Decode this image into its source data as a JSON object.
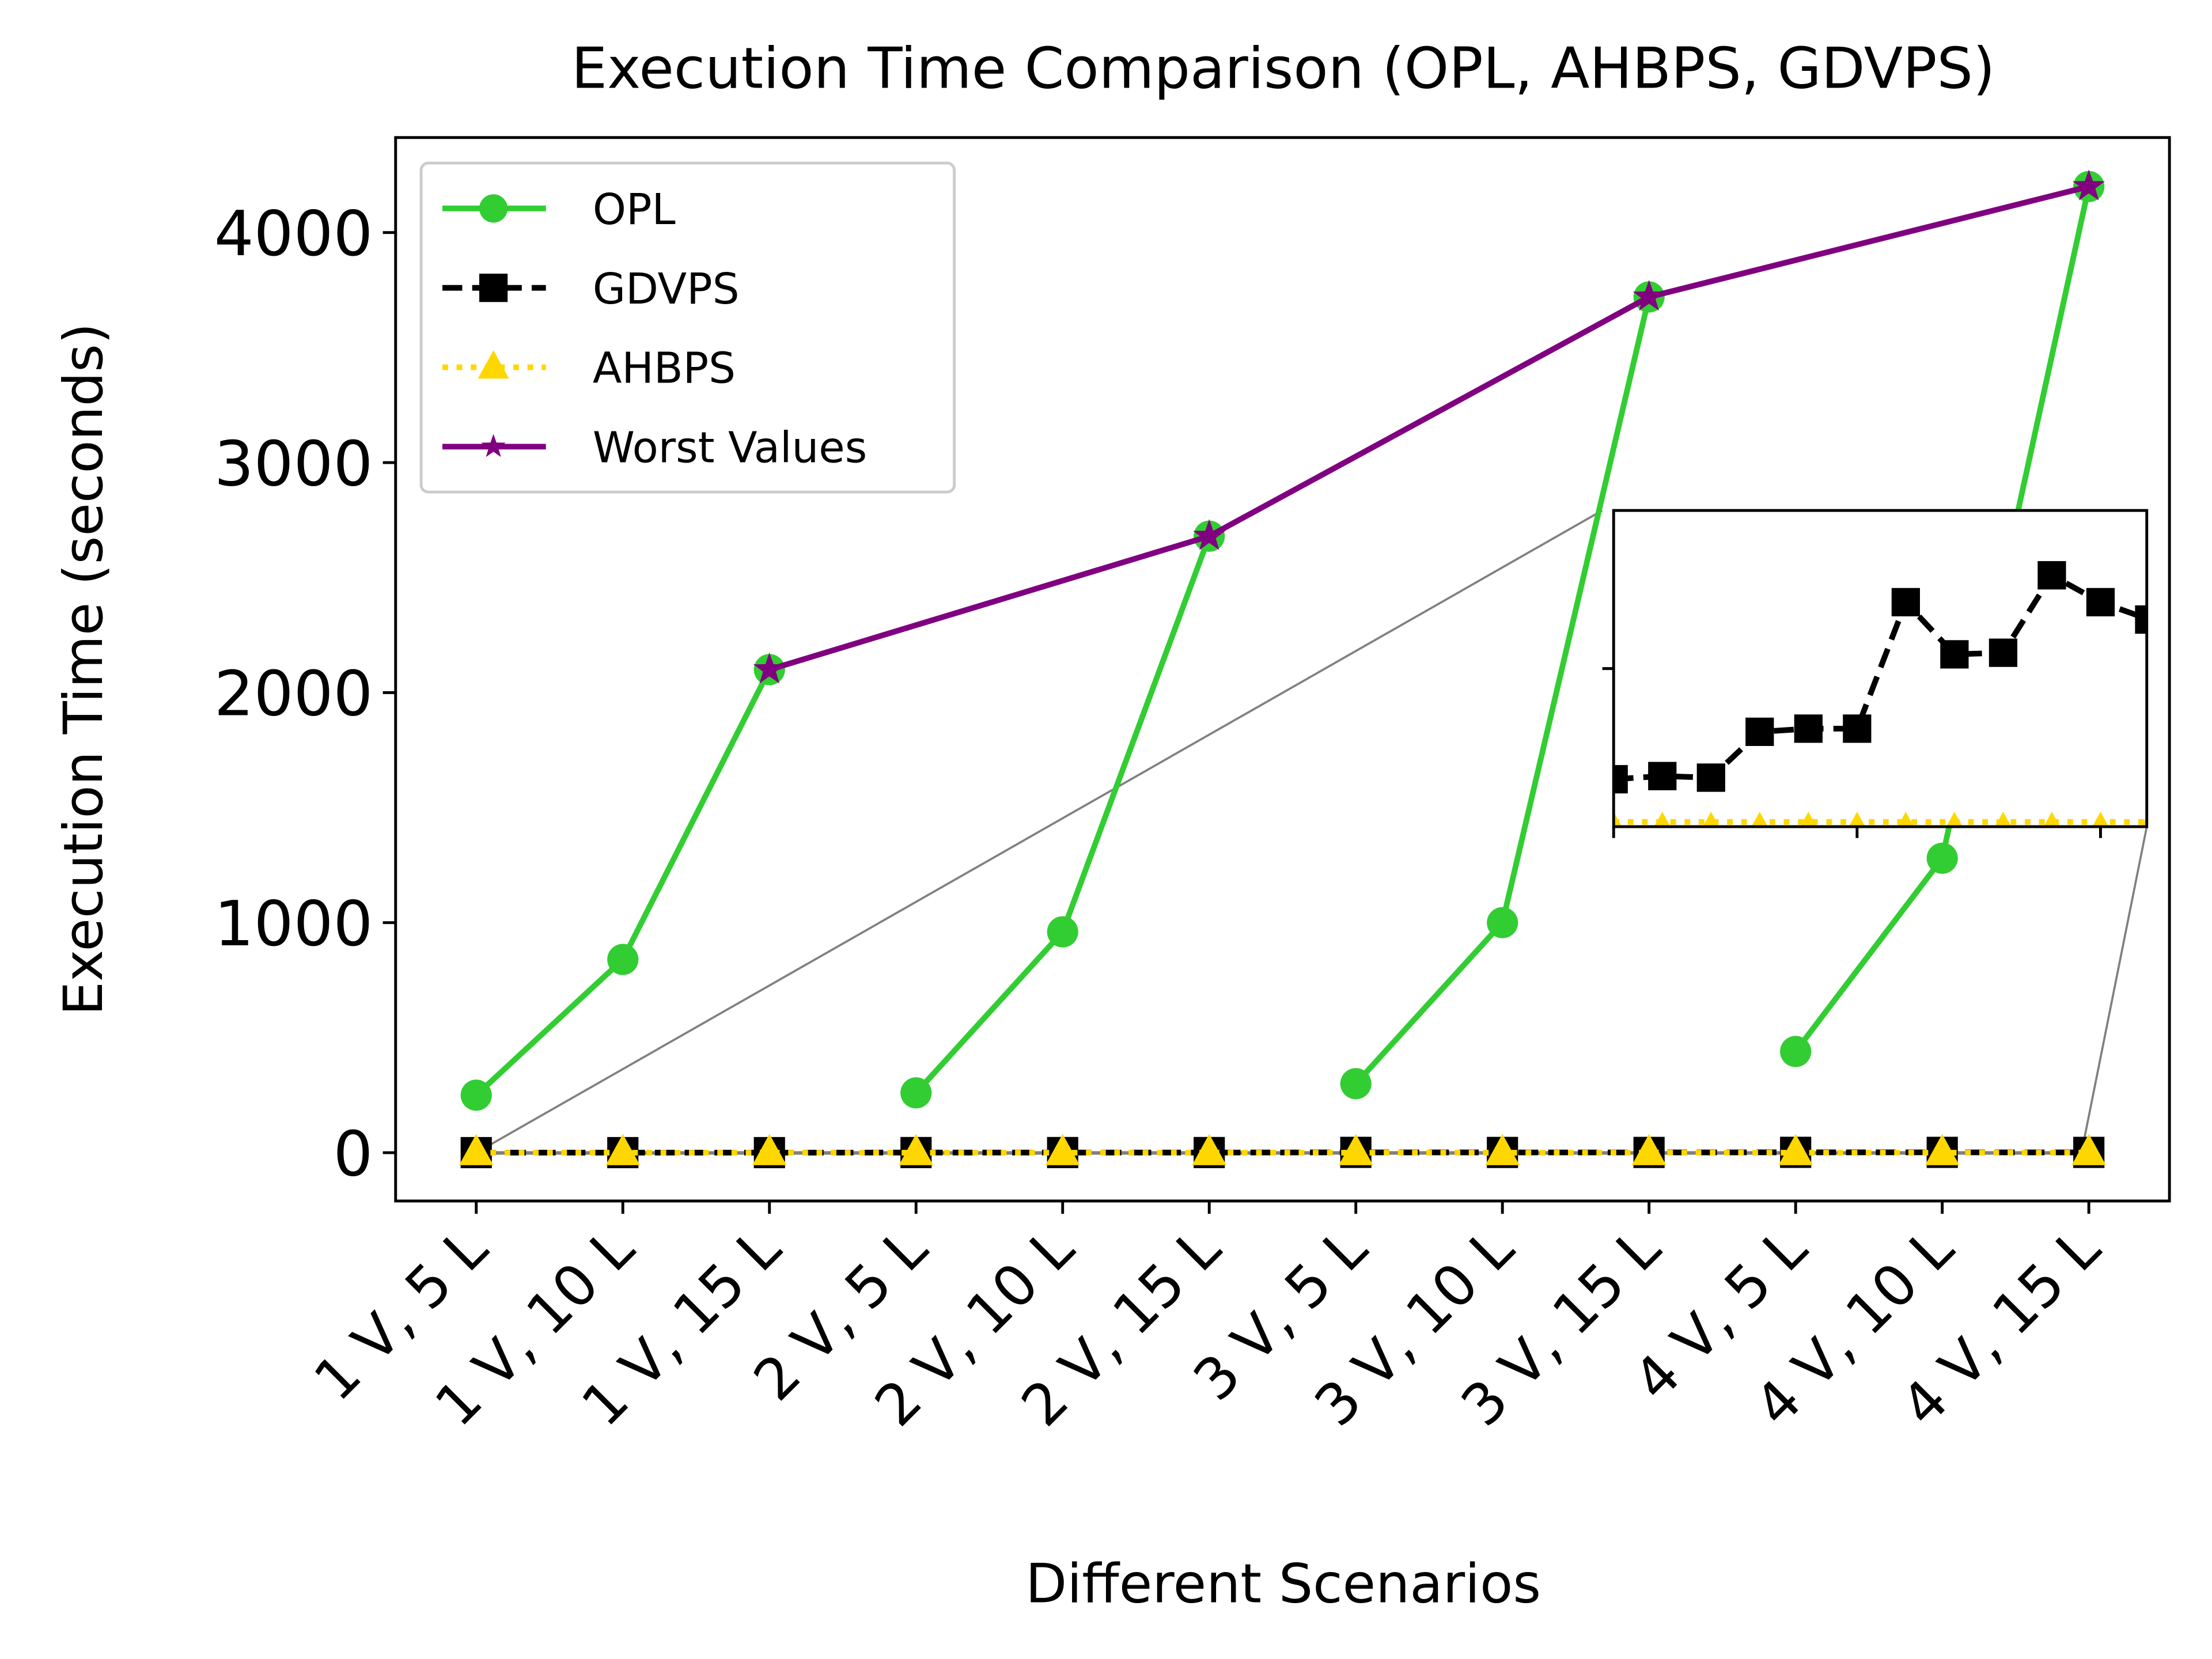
{
  "chart_data": {
    "type": "line",
    "title": "Execution Time Comparison (OPL, AHBPS, GDVPS)",
    "xlabel": "Different Scenarios",
    "ylabel": "Execution Time (seconds)",
    "categories": [
      "1 V, 5 L",
      "1 V, 10 L",
      "1 V, 15 L",
      "2 V, 5 L",
      "2 V, 10 L",
      "2 V, 15 L",
      "3 V, 5 L",
      "3 V, 10 L",
      "3 V, 15 L",
      "4 V, 5 L",
      "4 V, 10 L",
      "4 V, 15 L"
    ],
    "ylim": [
      -210,
      4413
    ],
    "yticks": [
      0,
      1000,
      2000,
      3000,
      4000
    ],
    "legend": "upper left",
    "series": [
      {
        "name": "OPL",
        "color": "#32cd32",
        "marker": "circle",
        "linestyle": "solid",
        "break_every": 3,
        "values": [
          250,
          840,
          2100,
          260,
          960,
          2680,
          300,
          1000,
          3720,
          440,
          1280,
          4200
        ]
      },
      {
        "name": "GDVPS",
        "color": "#000000",
        "marker": "square",
        "linestyle": "dashed",
        "in_inset": true,
        "values": [
          0.3,
          0.32,
          0.31,
          0.6,
          0.62,
          0.62,
          1.42,
          1.09,
          1.1,
          1.59,
          1.42,
          1.31
        ]
      },
      {
        "name": "AHBPS",
        "color": "#ffd700",
        "marker": "triangle",
        "linestyle": "dotted",
        "in_inset": true,
        "values": [
          0.03,
          0.03,
          0.03,
          0.03,
          0.03,
          0.03,
          0.03,
          0.03,
          0.03,
          0.03,
          0.03,
          0.03
        ]
      },
      {
        "name": "Worst Values",
        "color": "#800080",
        "marker": "star",
        "linestyle": "solid",
        "connect_gaps": true,
        "values": [
          null,
          null,
          2100,
          null,
          null,
          2680,
          null,
          null,
          3720,
          null,
          null,
          4200
        ]
      }
    ],
    "inset": {
      "xlim": [
        0,
        10.95
      ],
      "ylim": [
        0,
        2
      ],
      "xticks": [
        0,
        5,
        10
      ],
      "yticks": [
        1
      ]
    }
  }
}
